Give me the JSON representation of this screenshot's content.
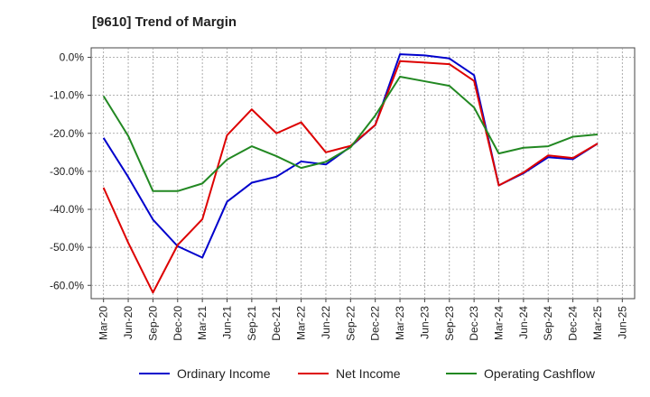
{
  "title": "[9610]  Trend of Margin",
  "chart_data": {
    "type": "line",
    "title": "[9610]  Trend of Margin",
    "x": [
      "Mar-20",
      "Jun-20",
      "Sep-20",
      "Dec-20",
      "Mar-21",
      "Jun-21",
      "Sep-21",
      "Dec-21",
      "Mar-22",
      "Jun-22",
      "Sep-22",
      "Dec-22",
      "Mar-23",
      "Jun-23",
      "Sep-23",
      "Dec-23",
      "Mar-24",
      "Jun-24",
      "Sep-24",
      "Dec-24",
      "Mar-25"
    ],
    "x_ticks": [
      "Mar-20",
      "Jun-20",
      "Sep-20",
      "Dec-20",
      "Mar-21",
      "Jun-21",
      "Sep-21",
      "Dec-21",
      "Mar-22",
      "Jun-22",
      "Sep-22",
      "Dec-22",
      "Mar-23",
      "Jun-23",
      "Sep-23",
      "Dec-23",
      "Mar-24",
      "Jun-24",
      "Sep-24",
      "Dec-24",
      "Mar-25",
      "Jun-25"
    ],
    "y_ticks": [
      0,
      -10,
      -20,
      -30,
      -40,
      -50,
      -60
    ],
    "y_tick_labels": [
      "0.0%",
      "-10.0%",
      "-20.0%",
      "-30.0%",
      "-40.0%",
      "-50.0%",
      "-60.0%"
    ],
    "ylim": [
      -63.5,
      2.5
    ],
    "grid": true,
    "legend_position": "bottom",
    "series": [
      {
        "name": "Ordinary Income",
        "color": "#0000cc",
        "values": [
          -21.2,
          -31.5,
          -42.7,
          -49.7,
          -52.7,
          -38.0,
          -33.0,
          -31.4,
          -27.4,
          -28.2,
          -23.5,
          -17.8,
          0.8,
          0.5,
          -0.3,
          -4.7,
          -33.7,
          -30.5,
          -26.3,
          -26.8,
          -22.7
        ]
      },
      {
        "name": "Net Income",
        "color": "#dd0000",
        "values": [
          -34.3,
          -48.8,
          -61.9,
          -49.4,
          -42.6,
          -20.5,
          -13.7,
          -20.0,
          -17.1,
          -25.0,
          -23.3,
          -17.8,
          -1.0,
          -1.4,
          -1.8,
          -6.2,
          -33.7,
          -30.3,
          -25.8,
          -26.5,
          -22.7
        ]
      },
      {
        "name": "Operating Cashflow",
        "color": "#228822",
        "values": [
          -10.2,
          -20.7,
          -35.2,
          -35.2,
          -33.2,
          -26.9,
          -23.4,
          -26.0,
          -29.1,
          -27.5,
          -23.7,
          -15.3,
          -5.1,
          -6.3,
          -7.5,
          -13.2,
          -25.3,
          -23.8,
          -23.4,
          -20.9,
          -20.3
        ]
      }
    ]
  }
}
